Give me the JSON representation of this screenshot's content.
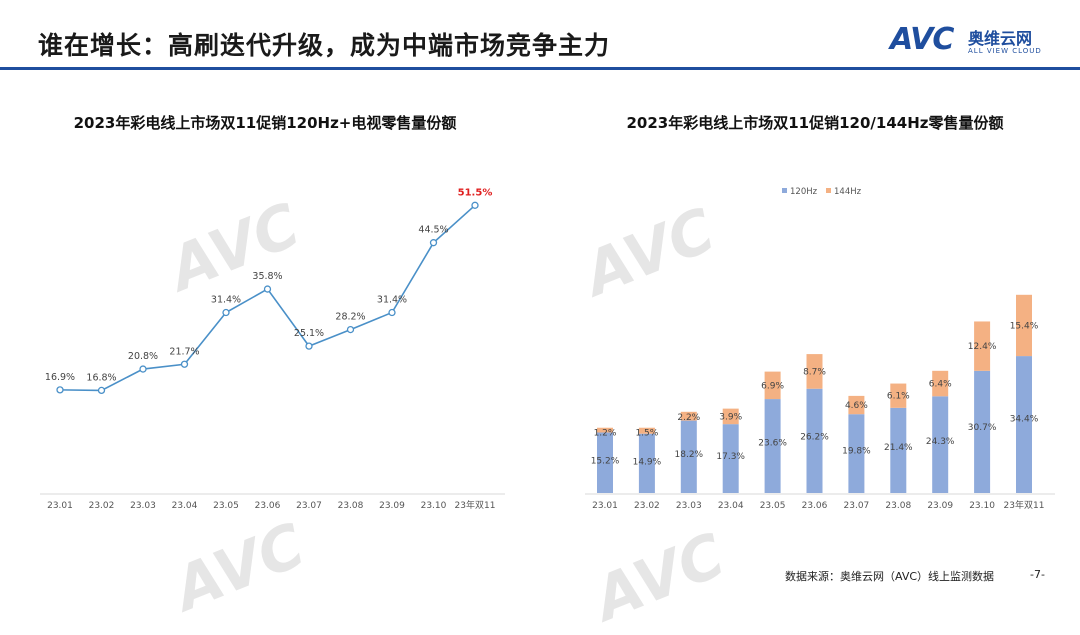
{
  "page": {
    "title": "谁在增长：高刷迭代升级，成为中端市场竞争主力",
    "logo_en": "AVC",
    "logo_cn": "奥维云网",
    "logo_sub": "ALL VIEW CLOUD",
    "source": "数据来源：奥维云网（AVC）线上监测数据",
    "page_number": "-7-",
    "accent": "#1f4e9e"
  },
  "chart_data": [
    {
      "type": "line",
      "title": "2023年彩电线上市场双11促销120Hz+电视零售量份额",
      "categories": [
        "23.01",
        "23.02",
        "23.03",
        "23.04",
        "23.05",
        "23.06",
        "23.07",
        "23.08",
        "23.09",
        "23.10",
        "23年双11"
      ],
      "series": [
        {
          "values": [
            16.9,
            16.8,
            20.8,
            21.7,
            31.4,
            35.8,
            25.1,
            28.2,
            31.4,
            44.5,
            51.5
          ],
          "labels": [
            "16.9%",
            "16.8%",
            "20.8%",
            "21.7%",
            "31.4%",
            "35.8%",
            "25.1%",
            "28.2%",
            "31.4%",
            "44.5%",
            "51.5%"
          ],
          "color": "#4a90c8",
          "highlight_color": "#e02020"
        }
      ],
      "ylim": [
        0,
        60
      ],
      "grid": false
    },
    {
      "type": "bar",
      "stacked": true,
      "title": "2023年彩电线上市场双11促销120/144Hz零售量份额",
      "categories": [
        "23.01",
        "23.02",
        "23.03",
        "23.04",
        "23.05",
        "23.06",
        "23.07",
        "23.08",
        "23.09",
        "23.10",
        "23年双11"
      ],
      "series": [
        {
          "name": "120Hz",
          "color": "#8eaadb",
          "values": [
            15.2,
            14.9,
            18.2,
            17.3,
            23.6,
            26.2,
            19.8,
            21.4,
            24.3,
            30.7,
            34.4
          ],
          "labels": [
            "15.2%",
            "14.9%",
            "18.2%",
            "17.3%",
            "23.6%",
            "26.2%",
            "19.8%",
            "21.4%",
            "24.3%",
            "30.7%",
            "34.4%"
          ]
        },
        {
          "name": "144Hz",
          "color": "#f4b183",
          "values": [
            1.2,
            1.5,
            2.2,
            3.9,
            6.9,
            8.7,
            4.6,
            6.1,
            6.4,
            12.4,
            15.4
          ],
          "labels": [
            "1.2%",
            "1.5%",
            "2.2%",
            "3.9%",
            "6.9%",
            "8.7%",
            "4.6%",
            "6.1%",
            "6.4%",
            "12.4%",
            "15.4%"
          ]
        }
      ],
      "ylim": [
        0,
        55
      ],
      "legend": "top-center",
      "grid": false
    }
  ]
}
